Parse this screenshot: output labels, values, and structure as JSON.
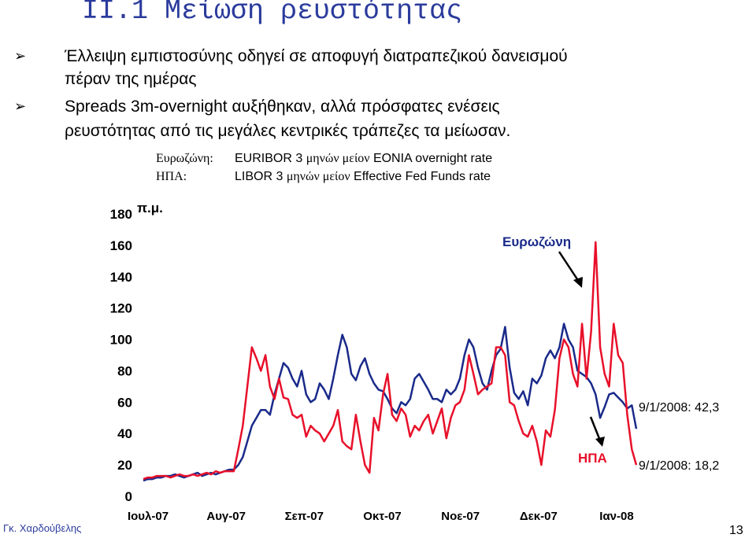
{
  "slide": {
    "title": "ΙΙ.1  Μείωση ρευστότητας",
    "bullets": [
      {
        "line1": "Έλλειψη εμπιστοσύνης οδηγεί σε αποφυγή διατραπεζικού δανεισμού",
        "line2": "πέραν της ημέρας"
      },
      {
        "line1": "Spreads 3m-overnight αυξήθηκαν, αλλά πρόσφατες ενέσεις",
        "line2": "ρευστότητας από τις μεγάλες κεντρικές τράπεζες τα μείωσαν."
      }
    ],
    "legend": [
      {
        "label": "Ευρωζώνη:",
        "text_a": "EURIBOR 3",
        "text_b": "μηνών μείον",
        "text_c": "EONIA overnight rate"
      },
      {
        "label": "ΗΠΑ:",
        "text_a": "LIBOR 3",
        "text_b": "μηνών μείον",
        "text_c": "Effective Fed Funds rate"
      }
    ],
    "author": "Γκ. Χαρδούβελης",
    "page_number": "13"
  },
  "chart_data": {
    "type": "line",
    "unit_label": "π.μ.",
    "ylim": [
      0,
      180
    ],
    "yticks": [
      "0",
      "20",
      "40",
      "60",
      "80",
      "100",
      "120",
      "140",
      "160",
      "180"
    ],
    "x_tick_labels": [
      "Ιουλ-07",
      "Αυγ-07",
      "Σεπ-07",
      "Οκτ-07",
      "Νοε-07",
      "Δεκ-07",
      "Ιαν-08"
    ],
    "grid": false,
    "series": [
      {
        "name": "Ευρωζώνη",
        "color": "#1a2a8a",
        "values": [
          10,
          11,
          11,
          12,
          12,
          13,
          13,
          14,
          13,
          12,
          13,
          14,
          15,
          13,
          14,
          15,
          14,
          15,
          16,
          17,
          17,
          20,
          25,
          35,
          45,
          50,
          55,
          55,
          52,
          65,
          75,
          85,
          82,
          75,
          70,
          80,
          65,
          60,
          62,
          72,
          68,
          62,
          75,
          90,
          103,
          95,
          78,
          74,
          83,
          88,
          78,
          72,
          68,
          67,
          62,
          56,
          53,
          60,
          58,
          62,
          75,
          78,
          73,
          68,
          62,
          62,
          60,
          68,
          65,
          68,
          75,
          90,
          100,
          95,
          82,
          72,
          68,
          80,
          90,
          94,
          108,
          82,
          66,
          62,
          67,
          58,
          75,
          72,
          77,
          88,
          93,
          88,
          95,
          110,
          100,
          95,
          80,
          78,
          76,
          72,
          65,
          50,
          57,
          65,
          66,
          63,
          60,
          56,
          58,
          43
        ]
      },
      {
        "name": "ΗΠΑ",
        "color": "#e8102a",
        "values": [
          11,
          12,
          12,
          13,
          13,
          13,
          12,
          13,
          14,
          13,
          13,
          14,
          13,
          14,
          15,
          14,
          16,
          15,
          16,
          16,
          16,
          30,
          45,
          70,
          95,
          88,
          80,
          90,
          70,
          62,
          75,
          63,
          62,
          52,
          50,
          52,
          38,
          45,
          42,
          40,
          35,
          40,
          45,
          55,
          35,
          32,
          30,
          52,
          35,
          20,
          15,
          50,
          42,
          65,
          78,
          52,
          48,
          56,
          52,
          38,
          45,
          42,
          48,
          52,
          40,
          48,
          56,
          37,
          50,
          58,
          60,
          68,
          90,
          78,
          65,
          68,
          70,
          72,
          95,
          95,
          90,
          60,
          58,
          48,
          40,
          38,
          45,
          35,
          20,
          42,
          38,
          55,
          88,
          100,
          95,
          78,
          70,
          110,
          75,
          105,
          162,
          95,
          78,
          70,
          110,
          90,
          85,
          52,
          30,
          20
        ]
      }
    ],
    "annotations": [
      {
        "text": "Ευρωζώνη",
        "color": "#1a2a8a"
      },
      {
        "text": "ΗΠΑ",
        "color": "#e8102a"
      },
      {
        "text": "9/1/2008: 42,3"
      },
      {
        "text": "9/1/2008: 18,2"
      }
    ]
  }
}
